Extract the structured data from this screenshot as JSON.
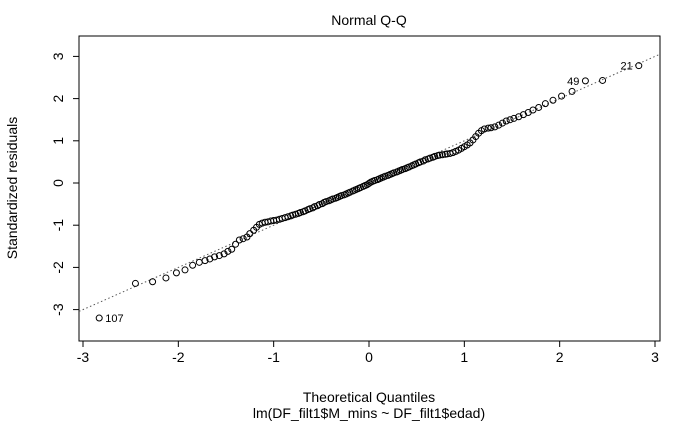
{
  "chart_data": {
    "type": "scatter",
    "title": "Normal Q-Q",
    "xlabel": "Theoretical Quantiles",
    "ylabel": "Standardized residuals",
    "subtitle": "lm(DF_filt1$M_mins ~ DF_filt1$edad)",
    "xlim": [
      -3,
      3
    ],
    "ylim": [
      -3.3,
      3.3
    ],
    "x_ticks": [
      -3,
      -2,
      -1,
      0,
      1,
      2,
      3
    ],
    "y_ticks": [
      -3,
      -2,
      -1,
      0,
      1,
      2,
      3
    ],
    "x_tick_labels": [
      "-3",
      "-2",
      "-1",
      "0",
      "1",
      "2",
      "3"
    ],
    "y_tick_labels": [
      "-3",
      "-2",
      "-1",
      "0",
      "1",
      "2",
      "3"
    ],
    "grid": false,
    "legend": "none",
    "reference_line": {
      "style": "dotted",
      "slope": 1.0,
      "intercept": 0.0
    },
    "point_style": "open-circle",
    "outliers": [
      {
        "label": "21",
        "x": 2.83,
        "y": 2.78
      },
      {
        "label": "49",
        "x": 2.27,
        "y": 2.42
      },
      {
        "label": "107",
        "x": -2.83,
        "y": -3.2
      }
    ],
    "points": [
      [
        -2.83,
        -3.2
      ],
      [
        -2.45,
        -2.38
      ],
      [
        -2.27,
        -2.34
      ],
      [
        -2.13,
        -2.25
      ],
      [
        -2.02,
        -2.13
      ],
      [
        -1.93,
        -2.06
      ],
      [
        -1.85,
        -1.95
      ],
      [
        -1.78,
        -1.88
      ],
      [
        -1.72,
        -1.84
      ],
      [
        -1.67,
        -1.8
      ],
      [
        -1.62,
        -1.75
      ],
      [
        -1.57,
        -1.72
      ],
      [
        -1.52,
        -1.68
      ],
      [
        -1.48,
        -1.62
      ],
      [
        -1.44,
        -1.57
      ],
      [
        -1.4,
        -1.45
      ],
      [
        -1.36,
        -1.35
      ],
      [
        -1.32,
        -1.32
      ],
      [
        -1.28,
        -1.28
      ],
      [
        -1.25,
        -1.2
      ],
      [
        -1.21,
        -1.12
      ],
      [
        -1.18,
        -1.05
      ],
      [
        -1.15,
        -0.98
      ],
      [
        -1.12,
        -0.95
      ],
      [
        -1.09,
        -0.93
      ],
      [
        -1.06,
        -0.92
      ],
      [
        -1.03,
        -0.9
      ],
      [
        -1.0,
        -0.89
      ],
      [
        -0.97,
        -0.88
      ],
      [
        -0.94,
        -0.86
      ],
      [
        -0.91,
        -0.84
      ],
      [
        -0.88,
        -0.82
      ],
      [
        -0.85,
        -0.8
      ],
      [
        -0.82,
        -0.78
      ],
      [
        -0.8,
        -0.76
      ],
      [
        -0.77,
        -0.74
      ],
      [
        -0.74,
        -0.72
      ],
      [
        -0.72,
        -0.7
      ],
      [
        -0.69,
        -0.68
      ],
      [
        -0.67,
        -0.66
      ],
      [
        -0.64,
        -0.63
      ],
      [
        -0.62,
        -0.61
      ],
      [
        -0.59,
        -0.59
      ],
      [
        -0.57,
        -0.56
      ],
      [
        -0.54,
        -0.54
      ],
      [
        -0.52,
        -0.51
      ],
      [
        -0.49,
        -0.49
      ],
      [
        -0.47,
        -0.46
      ],
      [
        -0.45,
        -0.44
      ],
      [
        -0.42,
        -0.42
      ],
      [
        -0.4,
        -0.4
      ],
      [
        -0.38,
        -0.38
      ],
      [
        -0.35,
        -0.36
      ],
      [
        -0.33,
        -0.34
      ],
      [
        -0.31,
        -0.32
      ],
      [
        -0.29,
        -0.3
      ],
      [
        -0.26,
        -0.28
      ],
      [
        -0.24,
        -0.26
      ],
      [
        -0.22,
        -0.24
      ],
      [
        -0.2,
        -0.22
      ],
      [
        -0.17,
        -0.19
      ],
      [
        -0.15,
        -0.17
      ],
      [
        -0.13,
        -0.15
      ],
      [
        -0.11,
        -0.13
      ],
      [
        -0.09,
        -0.11
      ],
      [
        -0.06,
        -0.08
      ],
      [
        -0.04,
        -0.06
      ],
      [
        -0.02,
        -0.04
      ],
      [
        0.0,
        -0.01
      ],
      [
        0.02,
        0.02
      ],
      [
        0.04,
        0.04
      ],
      [
        0.06,
        0.06
      ],
      [
        0.09,
        0.08
      ],
      [
        0.11,
        0.1
      ],
      [
        0.13,
        0.12
      ],
      [
        0.15,
        0.14
      ],
      [
        0.17,
        0.16
      ],
      [
        0.2,
        0.18
      ],
      [
        0.22,
        0.2
      ],
      [
        0.24,
        0.22
      ],
      [
        0.26,
        0.24
      ],
      [
        0.29,
        0.26
      ],
      [
        0.31,
        0.28
      ],
      [
        0.33,
        0.3
      ],
      [
        0.35,
        0.32
      ],
      [
        0.38,
        0.34
      ],
      [
        0.4,
        0.36
      ],
      [
        0.42,
        0.38
      ],
      [
        0.45,
        0.41
      ],
      [
        0.47,
        0.43
      ],
      [
        0.49,
        0.45
      ],
      [
        0.52,
        0.48
      ],
      [
        0.54,
        0.5
      ],
      [
        0.57,
        0.52
      ],
      [
        0.59,
        0.55
      ],
      [
        0.62,
        0.57
      ],
      [
        0.64,
        0.59
      ],
      [
        0.67,
        0.61
      ],
      [
        0.69,
        0.63
      ],
      [
        0.72,
        0.65
      ],
      [
        0.74,
        0.66
      ],
      [
        0.77,
        0.67
      ],
      [
        0.8,
        0.68
      ],
      [
        0.82,
        0.69
      ],
      [
        0.85,
        0.7
      ],
      [
        0.88,
        0.72
      ],
      [
        0.91,
        0.75
      ],
      [
        0.94,
        0.78
      ],
      [
        0.97,
        0.82
      ],
      [
        1.0,
        0.86
      ],
      [
        1.03,
        0.9
      ],
      [
        1.06,
        0.95
      ],
      [
        1.09,
        1.02
      ],
      [
        1.12,
        1.1
      ],
      [
        1.15,
        1.18
      ],
      [
        1.18,
        1.24
      ],
      [
        1.21,
        1.28
      ],
      [
        1.25,
        1.3
      ],
      [
        1.28,
        1.31
      ],
      [
        1.32,
        1.33
      ],
      [
        1.36,
        1.37
      ],
      [
        1.4,
        1.42
      ],
      [
        1.44,
        1.47
      ],
      [
        1.48,
        1.5
      ],
      [
        1.52,
        1.53
      ],
      [
        1.57,
        1.57
      ],
      [
        1.62,
        1.62
      ],
      [
        1.67,
        1.67
      ],
      [
        1.72,
        1.73
      ],
      [
        1.78,
        1.79
      ],
      [
        1.85,
        1.88
      ],
      [
        1.93,
        1.96
      ],
      [
        2.02,
        2.06
      ],
      [
        2.13,
        2.17
      ],
      [
        2.27,
        2.42
      ],
      [
        2.45,
        2.43
      ],
      [
        2.83,
        2.78
      ]
    ]
  }
}
